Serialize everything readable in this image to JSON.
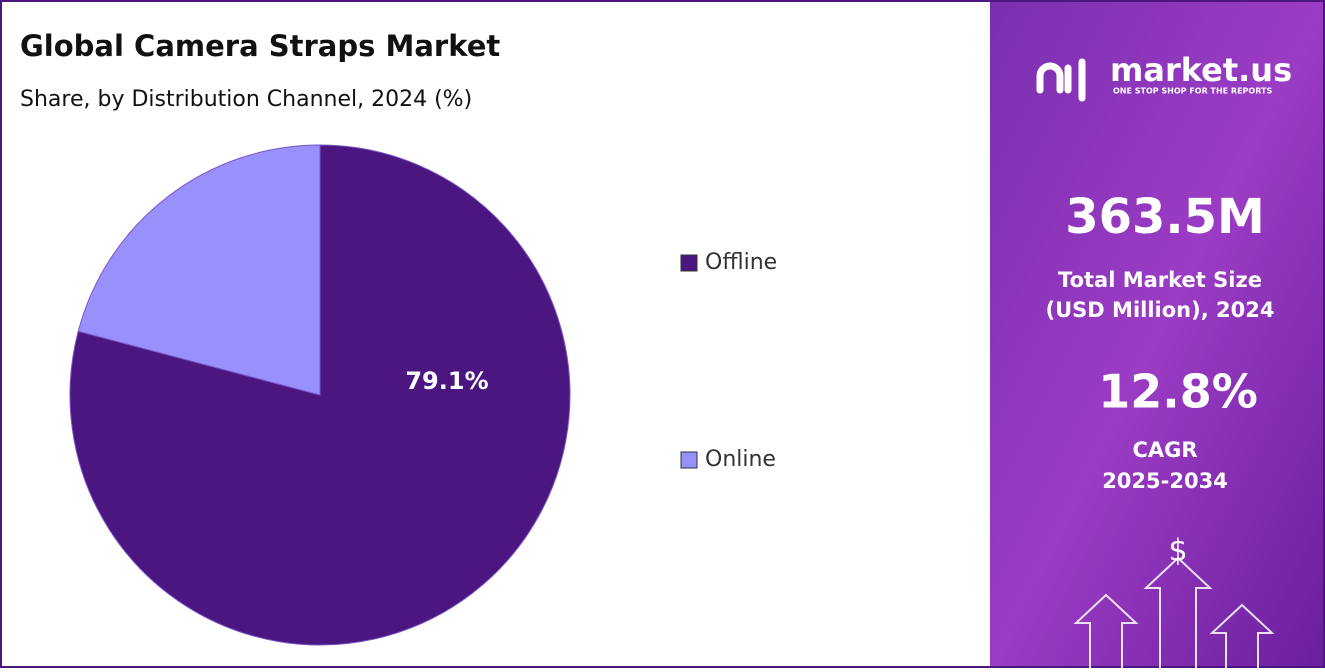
{
  "chart_data": {
    "type": "pie",
    "title": "Global Camera Straps Market",
    "subtitle": "Share, by Distribution Channel, 2024 (%)",
    "categories": [
      "Offline",
      "Online"
    ],
    "values": [
      79.1,
      20.9
    ],
    "value_labels": [
      "79.1%",
      null
    ],
    "colors": [
      "#4b167f",
      "#9990fc"
    ],
    "legend": "right"
  },
  "sidebar": {
    "brand": "market.us",
    "tagline": "ONE STOP SHOP FOR THE REPORTS",
    "market_size": "363.5M",
    "market_size_label_1": "Total Market Size",
    "market_size_label_2": "(USD Million), 2024",
    "cagr": "12.8%",
    "cagr_label_1": "CAGR",
    "cagr_label_2": "2025-2034"
  }
}
